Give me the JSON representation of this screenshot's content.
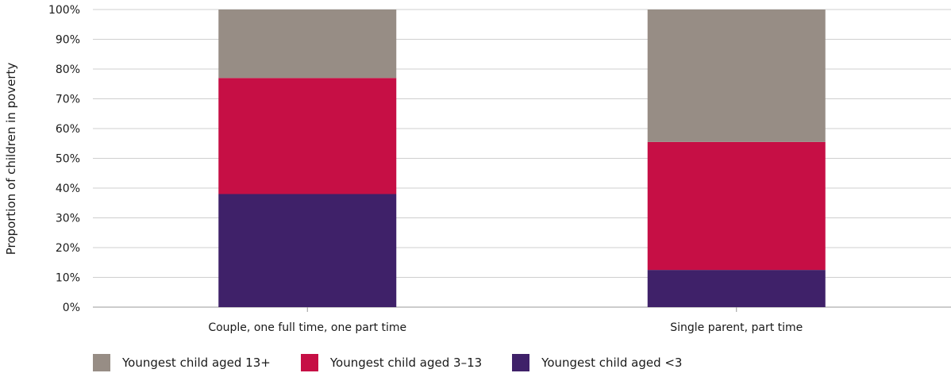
{
  "chart_data": {
    "type": "bar",
    "stacked": true,
    "categories": [
      "Couple, one full time, one part time",
      "Single parent, part time"
    ],
    "series": [
      {
        "name": "Youngest child aged <3",
        "values": [
          38,
          12.5
        ],
        "color": "#3f2169"
      },
      {
        "name": "Youngest child aged 3–13",
        "values": [
          39,
          43
        ],
        "color": "#c60f45"
      },
      {
        "name": "Youngest child aged 13+",
        "values": [
          23,
          44.5
        ],
        "color": "#978d85"
      }
    ],
    "legend_order": [
      2,
      1,
      0
    ],
    "ylabel": "Proportion of children in poverty",
    "xlabel": "",
    "ylim": [
      0,
      100
    ],
    "yticks": [
      "0%",
      "10%",
      "20%",
      "30%",
      "40%",
      "50%",
      "60%",
      "70%",
      "80%",
      "90%",
      "100%"
    ],
    "grid": true,
    "legend_position": "bottom-left"
  }
}
